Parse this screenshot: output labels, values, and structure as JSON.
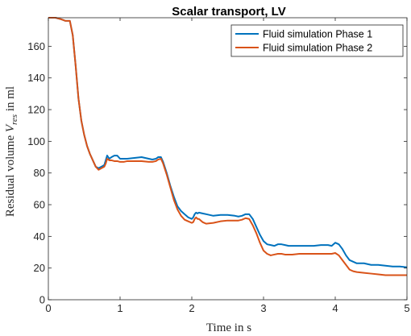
{
  "chart_data": {
    "type": "line",
    "title": "Scalar transport, LV",
    "xlabel": "Time in s",
    "ylabel": "Residual volume V_res in ml",
    "ylabel_parts": {
      "prefix": "Residual volume ",
      "symbol": "V",
      "subscript": "res",
      "suffix": " in ml"
    },
    "xlim": [
      0,
      5
    ],
    "ylim": [
      0,
      178
    ],
    "xticks": [
      0,
      1,
      2,
      3,
      4,
      5
    ],
    "yticks": [
      0,
      20,
      40,
      60,
      80,
      100,
      120,
      140,
      160
    ],
    "grid": false,
    "legend_position": "top-right",
    "series": [
      {
        "name": "Fluid simulation Phase 1",
        "color": "#0072BD",
        "x": [
          0,
          0.03,
          0.1,
          0.18,
          0.24,
          0.3,
          0.34,
          0.38,
          0.42,
          0.46,
          0.5,
          0.54,
          0.58,
          0.62,
          0.66,
          0.7,
          0.74,
          0.78,
          0.8,
          0.82,
          0.85,
          0.88,
          0.92,
          0.96,
          1.0,
          1.05,
          1.1,
          1.2,
          1.3,
          1.4,
          1.45,
          1.5,
          1.53,
          1.57,
          1.6,
          1.65,
          1.7,
          1.75,
          1.8,
          1.85,
          1.9,
          1.95,
          2.0,
          2.02,
          2.04,
          2.06,
          2.08,
          2.1,
          2.15,
          2.2,
          2.3,
          2.4,
          2.5,
          2.6,
          2.65,
          2.7,
          2.75,
          2.8,
          2.85,
          2.9,
          2.95,
          3.0,
          3.05,
          3.1,
          3.15,
          3.2,
          3.25,
          3.3,
          3.35,
          3.4,
          3.5,
          3.6,
          3.7,
          3.8,
          3.9,
          3.95,
          4.0,
          4.05,
          4.1,
          4.15,
          4.2,
          4.25,
          4.3,
          4.4,
          4.5,
          4.6,
          4.7,
          4.8,
          4.9,
          5.0
        ],
        "y": [
          178,
          178,
          178,
          177,
          176,
          176,
          167,
          148,
          127,
          113,
          104,
          97,
          92,
          88,
          84,
          83,
          84,
          85,
          88,
          91,
          89,
          90,
          91,
          91,
          89,
          89,
          89,
          89.5,
          90,
          89,
          88.5,
          89,
          90,
          90,
          87,
          80,
          72,
          65,
          59,
          56,
          54,
          52,
          51,
          52,
          54,
          55,
          54.5,
          55,
          54.5,
          54,
          53,
          53.5,
          53.5,
          53,
          52.5,
          53,
          54,
          54,
          51,
          46,
          41,
          37,
          35,
          34.5,
          34,
          35,
          35,
          34.5,
          34,
          34,
          34,
          34,
          34,
          34.5,
          34.5,
          34,
          36,
          35,
          32,
          28,
          25,
          24,
          23,
          23,
          22,
          22,
          21.5,
          21,
          21,
          20.5
        ]
      },
      {
        "name": "Fluid simulation Phase 2",
        "color": "#D95319",
        "x": [
          0,
          0.03,
          0.1,
          0.18,
          0.24,
          0.3,
          0.34,
          0.38,
          0.42,
          0.46,
          0.5,
          0.54,
          0.58,
          0.62,
          0.66,
          0.7,
          0.74,
          0.78,
          0.8,
          0.82,
          0.85,
          0.88,
          0.92,
          0.96,
          1.0,
          1.05,
          1.1,
          1.2,
          1.3,
          1.4,
          1.45,
          1.5,
          1.53,
          1.57,
          1.6,
          1.65,
          1.7,
          1.75,
          1.8,
          1.85,
          1.9,
          1.95,
          2.0,
          2.02,
          2.04,
          2.06,
          2.08,
          2.1,
          2.15,
          2.2,
          2.3,
          2.4,
          2.5,
          2.6,
          2.65,
          2.7,
          2.75,
          2.8,
          2.85,
          2.9,
          2.95,
          3.0,
          3.05,
          3.1,
          3.15,
          3.2,
          3.25,
          3.3,
          3.35,
          3.4,
          3.5,
          3.6,
          3.7,
          3.8,
          3.9,
          3.95,
          4.0,
          4.05,
          4.1,
          4.15,
          4.2,
          4.25,
          4.3,
          4.4,
          4.5,
          4.6,
          4.7,
          4.8,
          4.9,
          5.0
        ],
        "y": [
          178,
          178,
          178,
          177,
          176,
          176,
          167,
          148,
          127,
          113,
          104,
          97,
          92,
          88,
          84,
          82,
          83,
          84,
          86,
          89,
          88,
          88,
          87.5,
          87.5,
          87,
          87,
          87.5,
          87.5,
          87.5,
          87,
          87,
          87.5,
          88.5,
          89,
          86,
          79,
          71,
          63,
          57,
          53,
          50.5,
          49.5,
          48.5,
          49,
          51,
          52,
          51,
          51,
          49,
          48,
          48.5,
          49.5,
          50,
          50,
          50,
          50.5,
          51.5,
          51,
          47,
          42,
          36,
          31,
          29,
          28,
          28.5,
          29,
          29,
          28.5,
          28.5,
          28.5,
          29,
          29,
          29,
          29,
          29,
          29,
          29.5,
          28,
          25,
          22,
          19,
          18,
          17.5,
          17,
          16.5,
          16,
          15.5,
          15.5,
          15.5,
          15.5
        ]
      }
    ]
  }
}
